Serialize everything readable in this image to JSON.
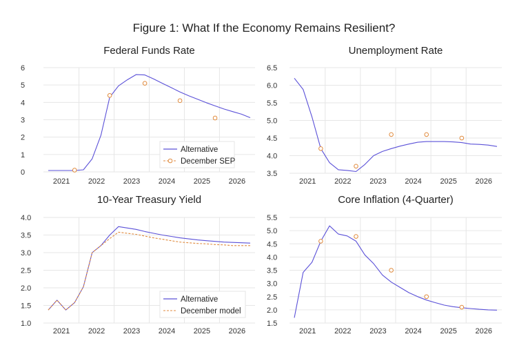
{
  "title": "Figure 1: What If the Economy Remains Resilient?",
  "colors": {
    "alternative": "#5a50d8",
    "december": "#e08a3c",
    "grid": "#e6e6e6"
  },
  "chart_data": [
    {
      "type": "line",
      "title": "Federal Funds Rate",
      "x_labels": [
        "2021",
        "2022",
        "2023",
        "2024",
        "2025",
        "2026"
      ],
      "x_frequency": "quarterly, 2021Q1-2026Q4",
      "ylim": [
        0,
        6
      ],
      "yticks": [
        "0",
        "1",
        "2",
        "3",
        "4",
        "5",
        "6"
      ],
      "ytick_values": [
        0,
        1,
        2,
        3,
        4,
        5,
        6
      ],
      "legend": [
        "Alternative",
        "December SEP"
      ],
      "legend_position": "bottom-right",
      "series": [
        {
          "name": "Alternative",
          "style": "line",
          "values": [
            0.08,
            0.08,
            0.08,
            0.08,
            0.12,
            0.75,
            2.1,
            4.3,
            4.95,
            5.3,
            5.6,
            5.58,
            5.35,
            5.1,
            4.85,
            4.6,
            4.38,
            4.18,
            3.98,
            3.8,
            3.62,
            3.47,
            3.32,
            3.12
          ]
        },
        {
          "name": "December SEP",
          "style": "markers",
          "x_index": [
            3,
            7,
            11,
            15,
            19
          ],
          "values": [
            0.1,
            4.4,
            5.1,
            4.1,
            3.1
          ]
        }
      ]
    },
    {
      "type": "line",
      "title": "Unemployment Rate",
      "x_labels": [
        "2021",
        "2022",
        "2023",
        "2024",
        "2025",
        "2026"
      ],
      "x_frequency": "quarterly, 2021Q1-2026Q4",
      "ylim": [
        3.5,
        6.5
      ],
      "yticks": [
        "3.5",
        "4.0",
        "4.5",
        "5.0",
        "5.5",
        "6.0",
        "6.5"
      ],
      "ytick_values": [
        3.5,
        4.0,
        4.5,
        5.0,
        5.5,
        6.0,
        6.5
      ],
      "legend": [],
      "series": [
        {
          "name": "Alternative",
          "style": "line",
          "values": [
            6.2,
            5.88,
            5.1,
            4.2,
            3.8,
            3.6,
            3.58,
            3.55,
            3.75,
            4.0,
            4.12,
            4.2,
            4.27,
            4.33,
            4.38,
            4.4,
            4.4,
            4.4,
            4.39,
            4.37,
            4.33,
            4.32,
            4.3,
            4.26
          ]
        },
        {
          "name": "December SEP",
          "style": "markers",
          "x_index": [
            3,
            7,
            11,
            15,
            19
          ],
          "values": [
            4.2,
            3.7,
            4.6,
            4.6,
            4.5
          ]
        }
      ]
    },
    {
      "type": "line",
      "title": "10-Year Treasury Yield",
      "x_labels": [
        "2021",
        "2022",
        "2023",
        "2024",
        "2025",
        "2026"
      ],
      "x_frequency": "quarterly, 2021Q1-2026Q4",
      "ylim": [
        1.0,
        4.0
      ],
      "yticks": [
        "1.0",
        "1.5",
        "2.0",
        "2.5",
        "3.0",
        "3.5",
        "4.0"
      ],
      "ytick_values": [
        1.0,
        1.5,
        2.0,
        2.5,
        3.0,
        3.5,
        4.0
      ],
      "legend": [
        "Alternative",
        "December model"
      ],
      "legend_position": "bottom-right",
      "series": [
        {
          "name": "Alternative",
          "style": "line",
          "values": [
            1.37,
            1.65,
            1.37,
            1.58,
            2.03,
            3.0,
            3.2,
            3.5,
            3.74,
            3.7,
            3.66,
            3.6,
            3.55,
            3.5,
            3.46,
            3.42,
            3.39,
            3.36,
            3.34,
            3.32,
            3.3,
            3.29,
            3.28,
            3.27
          ]
        },
        {
          "name": "December model",
          "style": "dashed",
          "values": [
            1.37,
            1.65,
            1.37,
            1.58,
            2.03,
            3.0,
            3.2,
            3.4,
            3.58,
            3.55,
            3.52,
            3.47,
            3.42,
            3.38,
            3.34,
            3.3,
            3.28,
            3.26,
            3.25,
            3.23,
            3.22,
            3.2,
            3.2,
            3.2
          ]
        }
      ]
    },
    {
      "type": "line",
      "title": "Core Inflation (4-Quarter)",
      "x_labels": [
        "2021",
        "2022",
        "2023",
        "2024",
        "2025",
        "2026"
      ],
      "x_frequency": "quarterly, 2021Q1-2026Q4",
      "ylim": [
        1.5,
        5.5
      ],
      "yticks": [
        "1.5",
        "2.0",
        "2.5",
        "3.0",
        "3.5",
        "4.0",
        "4.5",
        "5.0",
        "5.5"
      ],
      "ytick_values": [
        1.5,
        2.0,
        2.5,
        3.0,
        3.5,
        4.0,
        4.5,
        5.0,
        5.5
      ],
      "legend": [],
      "series": [
        {
          "name": "Alternative",
          "style": "line",
          "values": [
            1.7,
            3.42,
            3.8,
            4.6,
            5.18,
            4.87,
            4.8,
            4.6,
            4.08,
            3.75,
            3.32,
            3.05,
            2.85,
            2.65,
            2.5,
            2.37,
            2.27,
            2.18,
            2.12,
            2.08,
            2.05,
            2.02,
            2.0,
            1.99
          ]
        },
        {
          "name": "December SEP",
          "style": "markers",
          "x_index": [
            3,
            7,
            11,
            15,
            19
          ],
          "values": [
            4.6,
            4.78,
            3.5,
            2.5,
            2.1
          ]
        }
      ]
    }
  ]
}
